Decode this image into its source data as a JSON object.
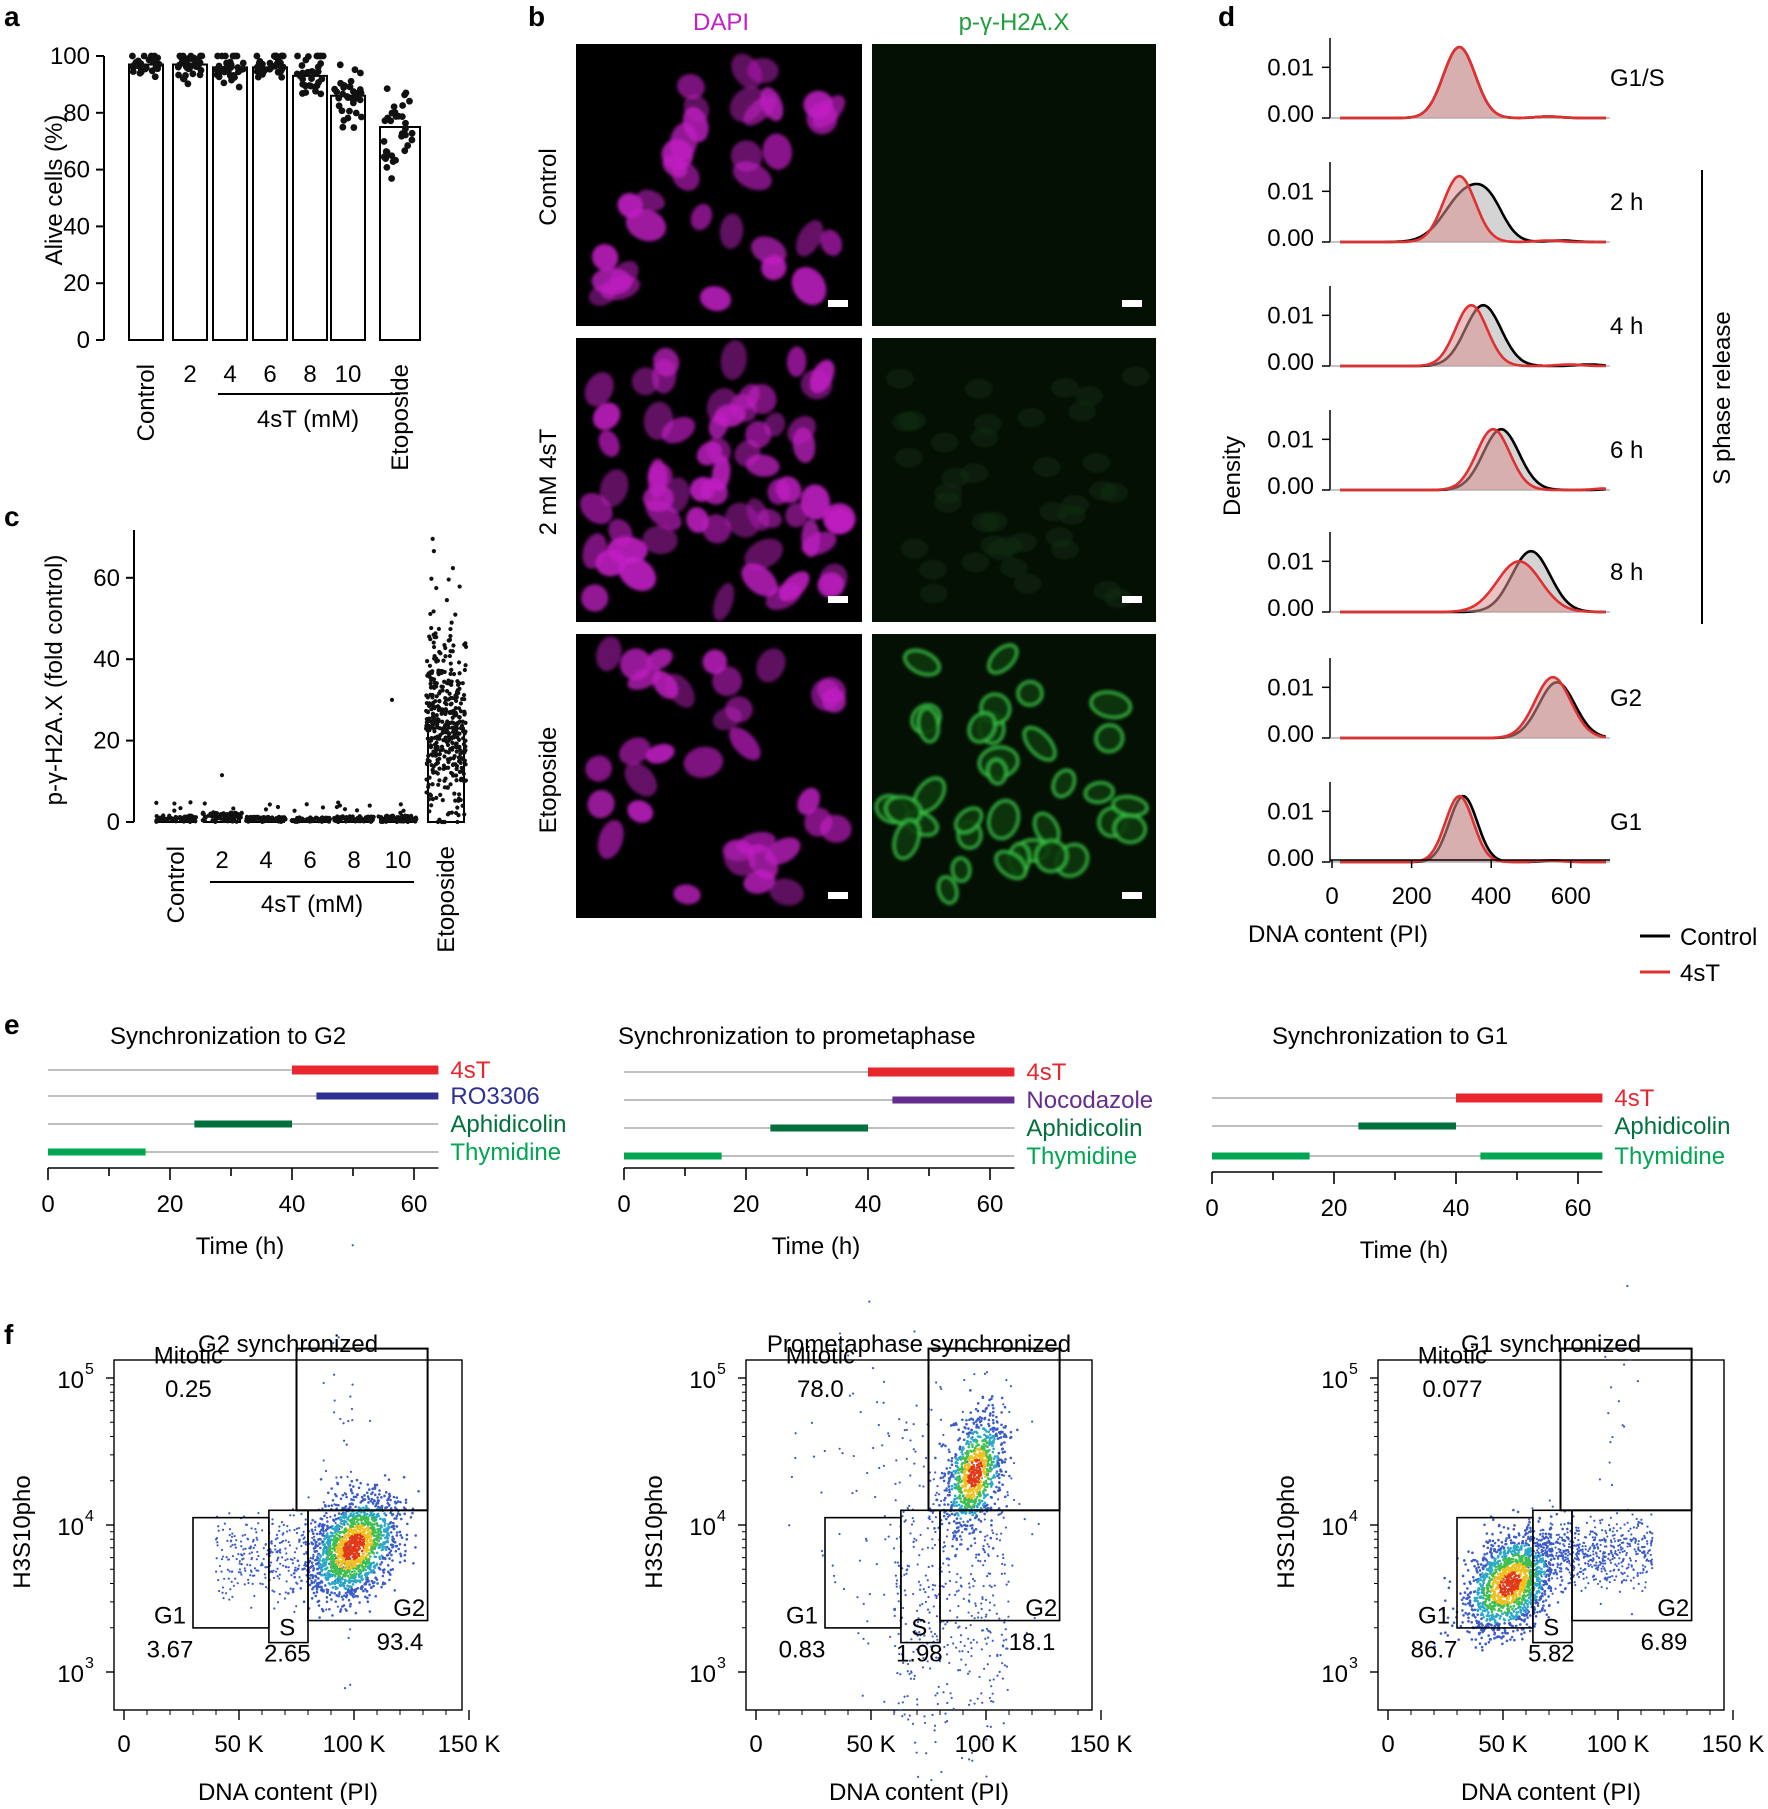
{
  "figure": {
    "panel_letters": [
      "a",
      "b",
      "c",
      "d",
      "e",
      "f"
    ],
    "panel_a": {
      "ylabel": "Alive cells (%)",
      "yticks": [
        "0",
        "20",
        "40",
        "60",
        "80",
        "100"
      ],
      "categories": [
        "Control",
        "2",
        "4",
        "6",
        "8",
        "10",
        "Etoposide"
      ],
      "group_label": "4sT (mM)"
    },
    "panel_b": {
      "col_titles": [
        "DAPI",
        "p-γ-H2A.X"
      ],
      "row_labels": [
        "Control",
        "2 mM 4sT",
        "Etoposide"
      ],
      "colors": {
        "dapi": "#c21fc4",
        "h2ax": "#1fa03a"
      }
    },
    "panel_c": {
      "ylabel": "p-γ-H2A.X (fold control)",
      "yticks": [
        "0",
        "20",
        "40",
        "60"
      ],
      "categories": [
        "Control",
        "2",
        "4",
        "6",
        "8",
        "10",
        "Etoposide"
      ],
      "group_label": "4sT (mM)"
    },
    "panel_d": {
      "ylabel": "Density",
      "xlabel": "DNA content (PI)",
      "xticks": [
        "0",
        "200",
        "400",
        "600"
      ],
      "yticks": [
        "0.00",
        "0.01"
      ],
      "row_labels": [
        "G1/S",
        "2 h",
        "4 h",
        "6 h",
        "8 h",
        "G2",
        "G1"
      ],
      "bracket_label": "S phase release",
      "legend": [
        "Control",
        "4sT"
      ],
      "colors": {
        "control": "#000000",
        "t4s": "#e03030"
      }
    },
    "panel_e": {
      "xlabel": "Time (h)",
      "xticks": [
        "0",
        "20",
        "40",
        "60"
      ],
      "panels": [
        {
          "title": "Synchronization to G2",
          "tracks": [
            {
              "label": "4sT",
              "color": "#e8262d"
            },
            {
              "label": "RO3306",
              "color": "#2e3192"
            },
            {
              "label": "Aphidicolin",
              "color": "#00703c"
            },
            {
              "label": "Thymidine",
              "color": "#00a651"
            }
          ]
        },
        {
          "title": "Synchronization to prometaphase",
          "tracks": [
            {
              "label": "4sT",
              "color": "#e8262d"
            },
            {
              "label": "Nocodazole",
              "color": "#662d91"
            },
            {
              "label": "Aphidicolin",
              "color": "#00703c"
            },
            {
              "label": "Thymidine",
              "color": "#00a651"
            }
          ]
        },
        {
          "title": "Synchronization to G1",
          "tracks": [
            {
              "label": "4sT",
              "color": "#e8262d"
            },
            {
              "label": "Aphidicolin",
              "color": "#00703c"
            },
            {
              "label": "Thymidine",
              "color": "#00a651"
            }
          ]
        }
      ]
    },
    "panel_f": {
      "ylabel": "H3S10pho",
      "xlabel": "DNA content (PI)",
      "xticks": [
        "0",
        "50 K",
        "100 K",
        "150 K"
      ],
      "ytick_bases": [
        "10",
        "10",
        "10"
      ],
      "ytick_exps": [
        "3",
        "4",
        "5"
      ],
      "panels": [
        {
          "title": "G2 synchronized",
          "gates": {
            "mitotic_label": "Mitotic",
            "mitotic": "0.25",
            "g1_label": "G1",
            "g1": "3.67",
            "s_label": "S",
            "s": "2.65",
            "g2_label": "G2",
            "g2": "93.4"
          }
        },
        {
          "title": "Prometaphase synchronized",
          "gates": {
            "mitotic_label": "Mitotic",
            "mitotic": "78.0",
            "g1_label": "G1",
            "g1": "0.83",
            "s_label": "S",
            "s": "1.98",
            "g2_label": "G2",
            "g2": "18.1"
          }
        },
        {
          "title": "G1 synchronized",
          "gates": {
            "mitotic_label": "Mitotic",
            "mitotic": "0.077",
            "g1_label": "G1",
            "g1": "86.7",
            "s_label": "S",
            "s": "5.82",
            "g2_label": "G2",
            "g2": "6.89"
          }
        }
      ]
    }
  },
  "chart_data": [
    {
      "type": "bar",
      "panel": "a",
      "categories": [
        "Control",
        "2",
        "4",
        "6",
        "8",
        "10",
        "Etoposide"
      ],
      "values": [
        97,
        97,
        96,
        96,
        93,
        86,
        75
      ],
      "ylabel": "Alive cells (%)",
      "ylim": [
        0,
        100
      ]
    },
    {
      "type": "bar",
      "panel": "c",
      "categories": [
        "Control",
        "2",
        "4",
        "6",
        "8",
        "10",
        "Etoposide"
      ],
      "values": [
        1,
        1.5,
        0.8,
        0.7,
        0.9,
        1,
        23
      ],
      "ylabel": "p-γ-H2A.X (fold control)",
      "ylim": [
        0,
        70
      ]
    },
    {
      "type": "line",
      "panel": "d",
      "xlabel": "DNA content (PI)",
      "ylabel": "Density",
      "xlim": [
        0,
        700
      ],
      "ylim": [
        0,
        0.015
      ],
      "rows": [
        {
          "label": "G1/S",
          "control": [
            320,
            0.014,
            40
          ],
          "t4s": [
            320,
            0.014,
            40
          ]
        },
        {
          "label": "2 h",
          "control": [
            340,
            0.01,
            55
          ],
          "t4s": [
            320,
            0.013,
            40
          ]
        },
        {
          "label": "4 h",
          "control": [
            380,
            0.012,
            45
          ],
          "t4s": [
            350,
            0.012,
            40
          ]
        },
        {
          "label": "6 h",
          "control": [
            425,
            0.012,
            45
          ],
          "t4s": [
            405,
            0.012,
            42
          ]
        },
        {
          "label": "8 h",
          "control": [
            500,
            0.012,
            48
          ],
          "t4s": [
            470,
            0.01,
            55
          ]
        },
        {
          "label": "G2",
          "control": [
            565,
            0.011,
            45
          ],
          "t4s": [
            555,
            0.012,
            45
          ]
        },
        {
          "label": "G1",
          "control": [
            330,
            0.013,
            35
          ],
          "t4s": [
            320,
            0.013,
            35
          ]
        }
      ]
    },
    {
      "type": "timeline",
      "panel": "e",
      "xlabel": "Time (h)",
      "xlim": [
        0,
        64
      ],
      "panels": [
        {
          "intervals": [
            [
              40,
              64
            ],
            [
              44,
              64
            ],
            [
              24,
              40
            ],
            [
              0,
              16
            ]
          ]
        },
        {
          "intervals": [
            [
              40,
              64
            ],
            [
              44,
              64
            ],
            [
              24,
              40
            ],
            [
              0,
              16
            ]
          ]
        },
        {
          "intervals": [
            [
              40,
              64
            ],
            [
              24,
              40
            ],
            [
              0,
              16,
              44,
              64
            ]
          ]
        }
      ]
    },
    {
      "type": "scatter",
      "panel": "f",
      "xlabel": "DNA content (PI)",
      "ylabel": "H3S10pho",
      "xlim": [
        0,
        160000
      ],
      "yscale": "log",
      "ylim": [
        1000,
        200000
      ]
    }
  ]
}
